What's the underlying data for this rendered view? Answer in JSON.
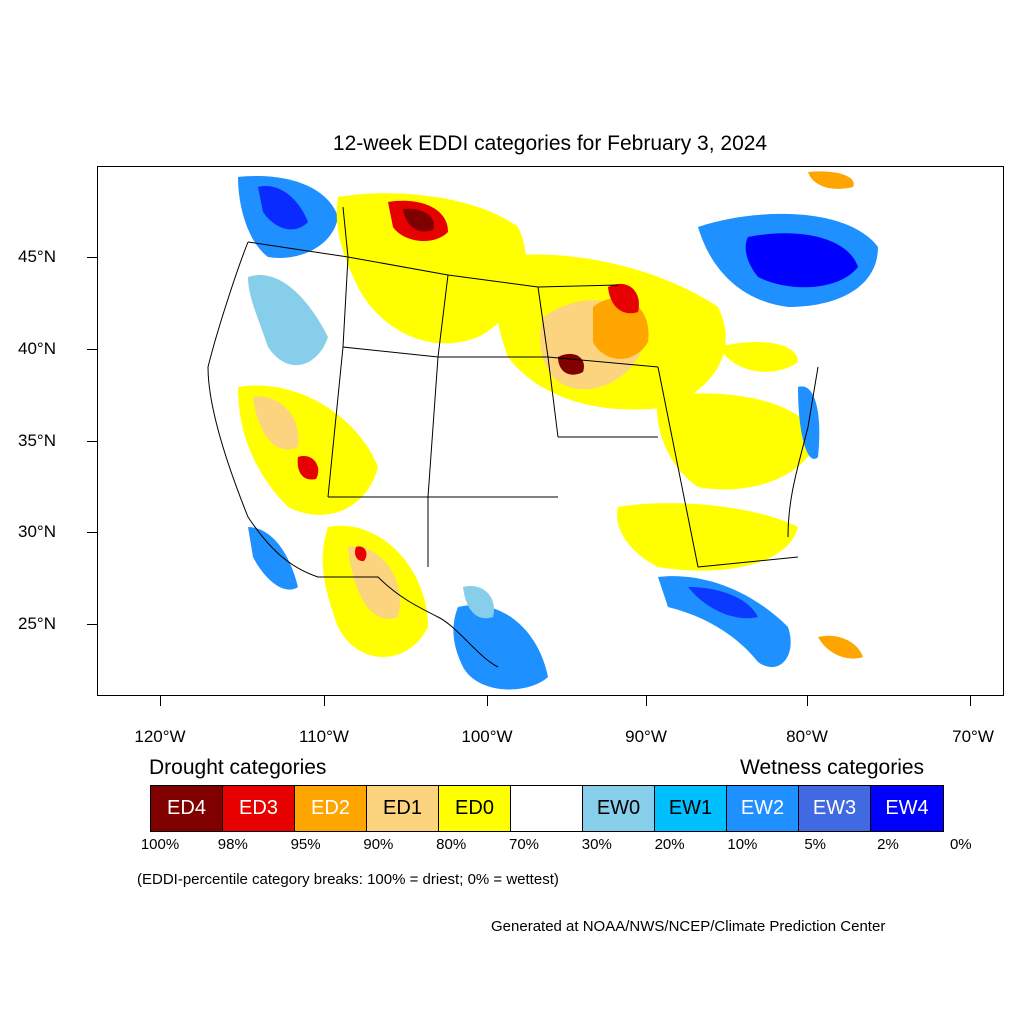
{
  "title": "12-week EDDI categories for February 3, 2024",
  "map": {
    "projection": "geographic-us",
    "lat_labels": [
      "45°N",
      "40°N",
      "35°N",
      "30°N",
      "25°N"
    ],
    "lon_labels": [
      "120°W",
      "110°W",
      "100°W",
      "90°W",
      "80°W",
      "70°W"
    ],
    "land_fill": "#ffffff",
    "boundary_color": "#000000"
  },
  "legend": {
    "drought_heading": "Drought categories",
    "wetness_heading": "Wetness categories",
    "categories": [
      {
        "label": "ED4",
        "color": "#800000",
        "text_color": "#ffffff"
      },
      {
        "label": "ED3",
        "color": "#e60000",
        "text_color": "#ffffff"
      },
      {
        "label": "ED2",
        "color": "#ffa500",
        "text_color": "#ffffff"
      },
      {
        "label": "ED1",
        "color": "#fcd37f",
        "text_color": "#000000"
      },
      {
        "label": "ED0",
        "color": "#ffff00",
        "text_color": "#000000"
      },
      {
        "label": "",
        "color": "#ffffff",
        "text_color": "#000000"
      },
      {
        "label": "EW0",
        "color": "#87ceeb",
        "text_color": "#000000"
      },
      {
        "label": "EW1",
        "color": "#00bfff",
        "text_color": "#000000"
      },
      {
        "label": "EW2",
        "color": "#1e90ff",
        "text_color": "#ffffff"
      },
      {
        "label": "EW3",
        "color": "#4169e1",
        "text_color": "#ffffff"
      },
      {
        "label": "EW4",
        "color": "#0000ff",
        "text_color": "#ffffff"
      }
    ],
    "breaks": [
      "100%",
      "98%",
      "95%",
      "90%",
      "80%",
      "70%",
      "30%",
      "20%",
      "10%",
      "5%",
      "2%",
      "0%"
    ],
    "note": "(EDDI-percentile category breaks: 100% = driest; 0% = wettest)"
  },
  "credit": "Generated at NOAA/NWS/NCEP/Climate Prediction Center"
}
